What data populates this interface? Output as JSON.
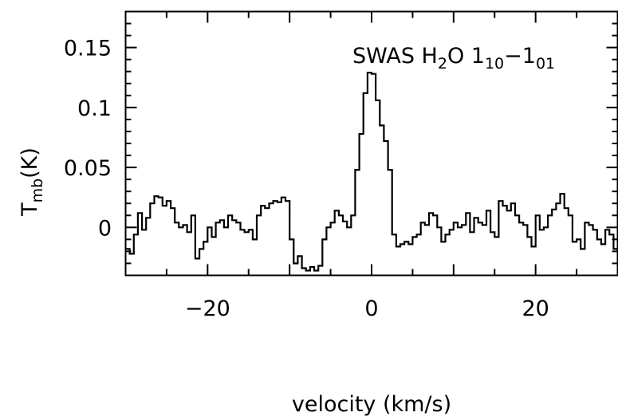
{
  "chart_data": {
    "type": "line",
    "style": "step",
    "annotation": {
      "base": "SWAS H",
      "sub1": "2",
      "mid": "O 1",
      "sub2": "10",
      "dash": "−1",
      "sub3": "01"
    },
    "xlabel": "velocity (km/s)",
    "ylabel": {
      "base": "T",
      "sub": "mb",
      "unit": "(K)"
    },
    "xlim": [
      -30,
      30
    ],
    "ylim": [
      -0.04,
      0.18
    ],
    "xticks": [
      {
        "value": -20,
        "label": "−20"
      },
      {
        "value": 0,
        "label": "0"
      },
      {
        "value": 20,
        "label": "20"
      }
    ],
    "yticks": [
      {
        "value": 0,
        "label": "0"
      },
      {
        "value": 0.05,
        "label": "0.05"
      },
      {
        "value": 0.1,
        "label": "0.1"
      },
      {
        "value": 0.15,
        "label": "0.15"
      }
    ],
    "grid": false,
    "series": [
      {
        "x": [
          -30.0,
          -29.5,
          -29.0,
          -28.5,
          -28.0,
          -27.5,
          -27.0,
          -26.5,
          -26.0,
          -25.5,
          -25.0,
          -24.5,
          -24.0,
          -23.5,
          -23.0,
          -22.5,
          -22.0,
          -21.5,
          -21.0,
          -20.5,
          -20.0,
          -19.5,
          -19.0,
          -18.5,
          -18.0,
          -17.5,
          -17.0,
          -16.5,
          -16.0,
          -15.5,
          -15.0,
          -14.5,
          -14.0,
          -13.5,
          -13.0,
          -12.5,
          -12.0,
          -11.5,
          -11.0,
          -10.5,
          -10.0,
          -9.5,
          -9.0,
          -8.5,
          -8.0,
          -7.5,
          -7.0,
          -6.5,
          -6.0,
          -5.5,
          -5.0,
          -4.5,
          -4.0,
          -3.5,
          -3.0,
          -2.5,
          -2.0,
          -1.5,
          -1.0,
          -0.5,
          0.0,
          0.5,
          1.0,
          1.5,
          2.0,
          2.5,
          3.0,
          3.5,
          4.0,
          4.5,
          5.0,
          5.5,
          6.0,
          6.5,
          7.0,
          7.5,
          8.0,
          8.5,
          9.0,
          9.5,
          10.0,
          10.5,
          11.0,
          11.5,
          12.0,
          12.5,
          13.0,
          13.5,
          14.0,
          14.5,
          15.0,
          15.5,
          16.0,
          16.5,
          17.0,
          17.5,
          18.0,
          18.5,
          19.0,
          19.5,
          20.0,
          20.5,
          21.0,
          21.5,
          22.0,
          22.5,
          23.0,
          23.5,
          24.0,
          24.5,
          25.0,
          25.5,
          26.0,
          26.5,
          27.0,
          27.5,
          28.0,
          28.5,
          29.0,
          29.5
        ],
        "y": [
          -0.018,
          -0.022,
          -0.006,
          0.012,
          -0.002,
          0.008,
          0.02,
          0.026,
          0.025,
          0.018,
          0.022,
          0.016,
          0.004,
          0.0,
          0.002,
          -0.004,
          0.01,
          -0.026,
          -0.018,
          -0.012,
          0.0,
          -0.008,
          0.004,
          0.006,
          0.0,
          0.01,
          0.006,
          0.004,
          -0.002,
          -0.004,
          -0.002,
          -0.01,
          0.01,
          0.018,
          0.016,
          0.02,
          0.022,
          0.021,
          0.025,
          0.022,
          -0.01,
          -0.03,
          -0.024,
          -0.034,
          -0.036,
          -0.033,
          -0.036,
          -0.032,
          -0.01,
          0.0,
          0.004,
          0.014,
          0.01,
          0.005,
          0.0,
          0.01,
          0.048,
          0.078,
          0.112,
          0.129,
          0.128,
          0.106,
          0.085,
          0.072,
          0.048,
          -0.006,
          -0.016,
          -0.014,
          -0.012,
          -0.014,
          -0.008,
          -0.006,
          0.004,
          0.002,
          0.012,
          0.01,
          0.0,
          -0.012,
          -0.006,
          -0.002,
          0.004,
          0.0,
          0.002,
          0.012,
          -0.004,
          0.008,
          0.004,
          0.002,
          0.014,
          -0.004,
          -0.008,
          0.022,
          0.018,
          0.014,
          0.02,
          0.01,
          0.004,
          0.002,
          -0.008,
          -0.016,
          0.01,
          -0.002,
          0.0,
          0.01,
          0.015,
          0.02,
          0.028,
          0.016,
          0.01,
          -0.012,
          -0.01,
          -0.018,
          0.004,
          0.002,
          -0.002,
          -0.01,
          -0.014,
          -0.002,
          -0.006,
          -0.018
        ]
      }
    ]
  }
}
